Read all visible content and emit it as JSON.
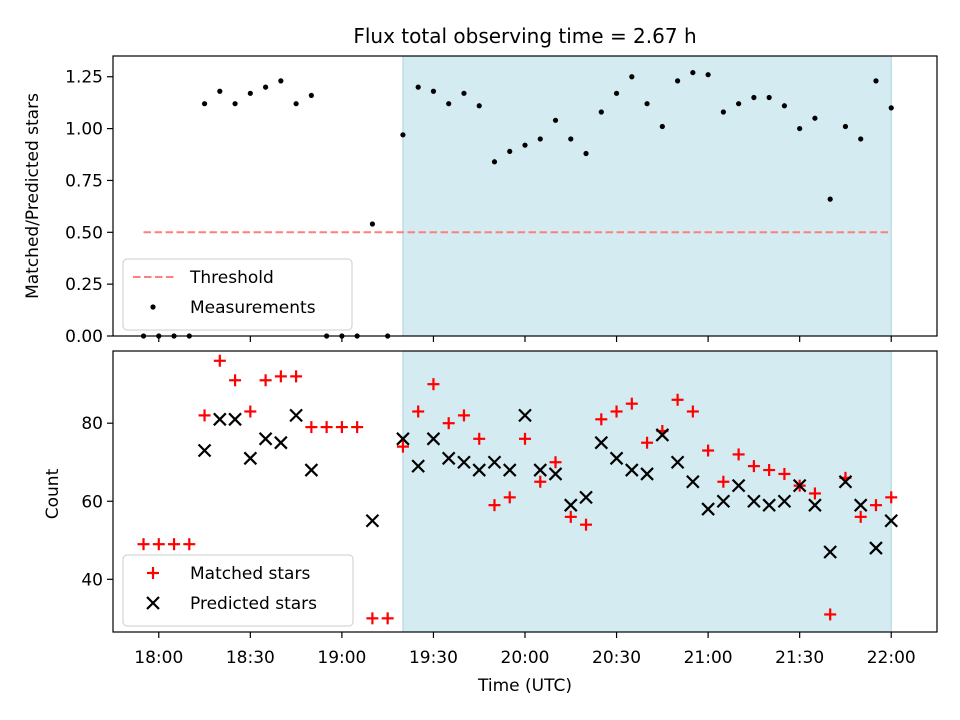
{
  "title": "Flux total observing time = 2.67 h",
  "chart_data": [
    {
      "type": "scatter",
      "panel": "top",
      "title": "Flux total observing time = 2.67 h",
      "ylabel": "Matched/Predicted stars",
      "xlabel": "",
      "ylim": [
        0,
        1.35
      ],
      "yticks": [
        0.0,
        0.25,
        0.5,
        0.75,
        1.0,
        1.25
      ],
      "ytick_labels": [
        "0.00",
        "0.25",
        "0.50",
        "0.75",
        "1.00",
        "1.25"
      ],
      "legend_position": "lower-left",
      "highlight_span": {
        "start": "19:20",
        "end": "22:00",
        "color": "#d4ebf1"
      },
      "threshold": {
        "name": "Threshold",
        "value": 0.5,
        "x_start": "17:55",
        "x_end": "22:00",
        "color": "#ff7f7f",
        "style": "dashed"
      },
      "series": [
        {
          "name": "Measurements",
          "marker": "dot",
          "color": "#000000",
          "x": [
            "17:55",
            "18:00",
            "18:05",
            "18:10",
            "18:15",
            "18:20",
            "18:25",
            "18:30",
            "18:35",
            "18:40",
            "18:45",
            "18:50",
            "18:55",
            "19:00",
            "19:05",
            "19:10",
            "19:15",
            "19:20",
            "19:25",
            "19:30",
            "19:35",
            "19:40",
            "19:45",
            "19:50",
            "19:55",
            "20:00",
            "20:05",
            "20:10",
            "20:15",
            "20:20",
            "20:25",
            "20:30",
            "20:35",
            "20:40",
            "20:45",
            "20:50",
            "20:55",
            "21:00",
            "21:05",
            "21:10",
            "21:15",
            "21:20",
            "21:25",
            "21:30",
            "21:35",
            "21:40",
            "21:45",
            "21:50",
            "21:55",
            "22:00"
          ],
          "y": [
            0,
            0,
            0,
            0,
            1.12,
            1.18,
            1.12,
            1.17,
            1.2,
            1.23,
            1.12,
            1.16,
            0,
            0,
            0,
            0.54,
            0,
            0.97,
            1.2,
            1.18,
            1.12,
            1.17,
            1.11,
            0.84,
            0.89,
            0.92,
            0.95,
            1.04,
            0.95,
            0.88,
            1.08,
            1.17,
            1.25,
            1.12,
            1.01,
            1.23,
            1.27,
            1.26,
            1.08,
            1.12,
            1.15,
            1.15,
            1.11,
            1.0,
            1.05,
            0.66,
            1.01,
            0.95,
            1.23,
            1.1
          ]
        }
      ]
    },
    {
      "type": "scatter",
      "panel": "bottom",
      "ylabel": "Count",
      "xlabel": "Time (UTC)",
      "ylim": [
        26.5,
        98.5
      ],
      "yticks": [
        40,
        60,
        80
      ],
      "ytick_labels": [
        "40",
        "60",
        "80"
      ],
      "xlim": [
        "17:45",
        "22:15"
      ],
      "xticks": [
        "18:00",
        "18:30",
        "19:00",
        "19:30",
        "20:00",
        "20:30",
        "21:00",
        "21:30",
        "22:00"
      ],
      "xtick_labels": [
        "18:00",
        "18:30",
        "19:00",
        "19:30",
        "20:00",
        "20:30",
        "21:00",
        "21:30",
        "22:00"
      ],
      "legend_position": "lower-left",
      "highlight_span": {
        "start": "19:20",
        "end": "22:00",
        "color": "#d4ebf1"
      },
      "series": [
        {
          "name": "Matched stars",
          "marker": "plus",
          "color": "#ff0000",
          "x": [
            "17:55",
            "18:00",
            "18:05",
            "18:10",
            "18:15",
            "18:20",
            "18:25",
            "18:30",
            "18:35",
            "18:40",
            "18:45",
            "18:50",
            "18:55",
            "19:00",
            "19:05",
            "19:10",
            "19:15",
            "19:20",
            "19:25",
            "19:30",
            "19:35",
            "19:40",
            "19:45",
            "19:50",
            "19:55",
            "20:00",
            "20:05",
            "20:10",
            "20:15",
            "20:20",
            "20:25",
            "20:30",
            "20:35",
            "20:40",
            "20:45",
            "20:50",
            "20:55",
            "21:00",
            "21:05",
            "21:10",
            "21:15",
            "21:20",
            "21:25",
            "21:30",
            "21:35",
            "21:40",
            "21:45",
            "21:50",
            "21:55",
            "22:00"
          ],
          "y": [
            49,
            49,
            49,
            49,
            82,
            96,
            91,
            83,
            91,
            92,
            92,
            79,
            79,
            79,
            79,
            30,
            30,
            74,
            83,
            90,
            80,
            82,
            76,
            59,
            61,
            76,
            65,
            70,
            56,
            54,
            81,
            83,
            85,
            75,
            78,
            86,
            83,
            73,
            65,
            72,
            69,
            68,
            67,
            64,
            62,
            31,
            66,
            56,
            59,
            61
          ]
        },
        {
          "name": "Predicted stars",
          "marker": "x",
          "color": "#000000",
          "x": [
            "18:15",
            "18:20",
            "18:25",
            "18:30",
            "18:35",
            "18:40",
            "18:45",
            "18:50",
            "19:10",
            "19:20",
            "19:25",
            "19:30",
            "19:35",
            "19:40",
            "19:45",
            "19:50",
            "19:55",
            "20:00",
            "20:05",
            "20:10",
            "20:15",
            "20:20",
            "20:25",
            "20:30",
            "20:35",
            "20:40",
            "20:45",
            "20:50",
            "20:55",
            "21:00",
            "21:05",
            "21:10",
            "21:15",
            "21:20",
            "21:25",
            "21:30",
            "21:35",
            "21:40",
            "21:45",
            "21:50",
            "21:55",
            "22:00"
          ],
          "y": [
            73,
            81,
            81,
            71,
            76,
            75,
            82,
            68,
            55,
            76,
            69,
            76,
            71,
            70,
            68,
            70,
            68,
            82,
            68,
            67,
            59,
            61,
            75,
            71,
            68,
            67,
            77,
            70,
            65,
            58,
            60,
            64,
            60,
            59,
            60,
            64,
            59,
            47,
            65,
            59,
            48,
            55
          ]
        }
      ]
    }
  ]
}
